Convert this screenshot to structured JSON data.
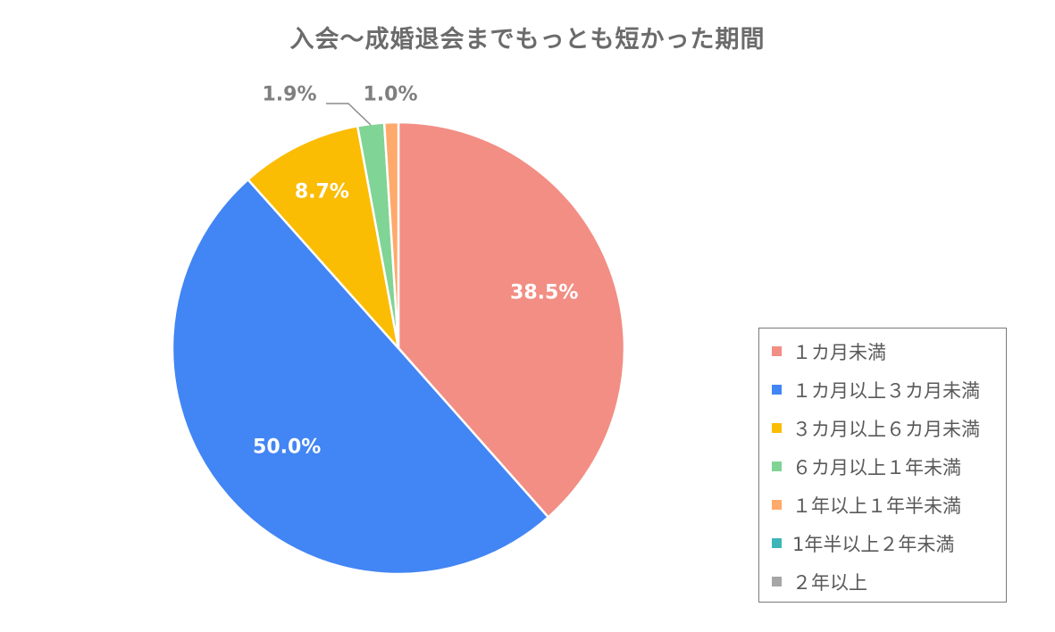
{
  "chart_data": {
    "type": "pie",
    "title": "入会～成婚退会までもっとも短かった期間",
    "slices": [
      {
        "name": "１カ月未満",
        "value": 38.5,
        "label": "38.5%",
        "color": "#F28E84",
        "label_color": "#ffffff"
      },
      {
        "name": "１カ月以上３カ月未満",
        "value": 50.0,
        "label": "50.0%",
        "color": "#4285F4",
        "label_color": "#ffffff"
      },
      {
        "name": "３カ月以上６カ月未満",
        "value": 8.7,
        "label": "8.7%",
        "color": "#FBBC04",
        "label_color": "#ffffff"
      },
      {
        "name": "６カ月以上１年未満",
        "value": 1.9,
        "label": "1.9%",
        "color": "#80D495",
        "label_color": "#7f7f7f"
      },
      {
        "name": "１年以上１年半未満",
        "value": 1.0,
        "label": "1.0%",
        "color": "#FFA96B",
        "label_color": "#7f7f7f"
      },
      {
        "name": "1年半以上２年未満",
        "value": 0,
        "label": "",
        "color": "#3DB5B8",
        "label_color": "#7f7f7f"
      },
      {
        "name": "２年以上",
        "value": 0,
        "label": "",
        "color": "#A6A6A6",
        "label_color": "#7f7f7f"
      }
    ],
    "legend_position": "right"
  }
}
